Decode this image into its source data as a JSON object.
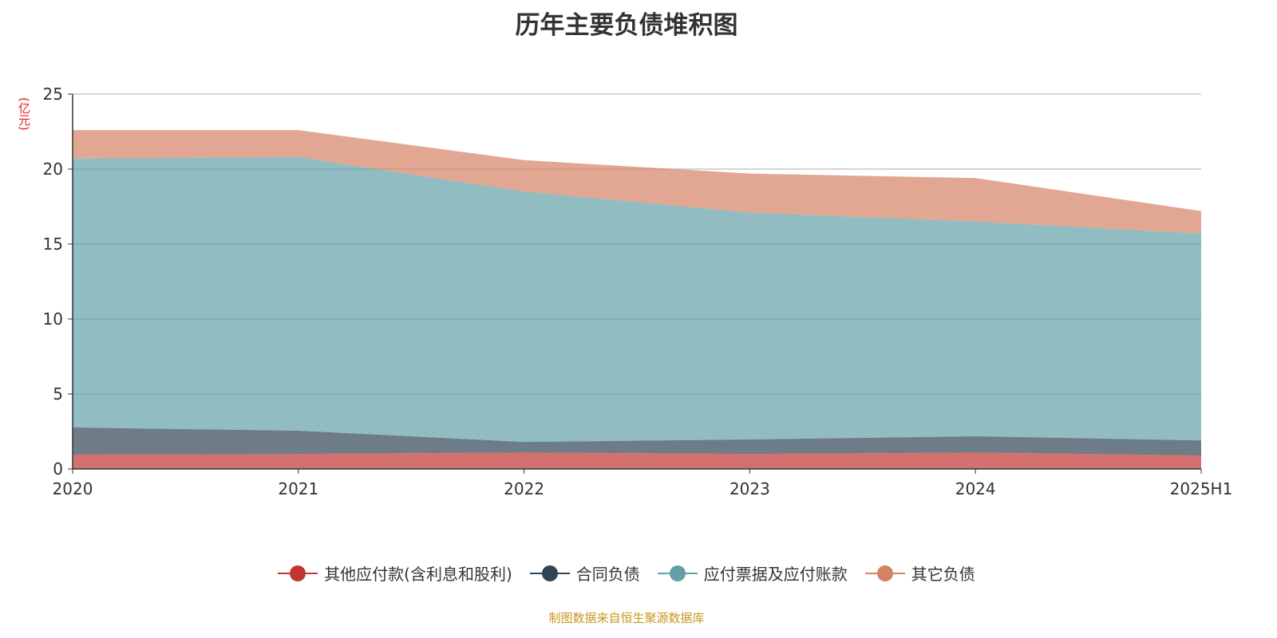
{
  "chart_data": {
    "type": "area",
    "stacked": true,
    "title": "历年主要负债堆积图",
    "ylabel": "(亿元)",
    "xlabel": "",
    "categories": [
      "2020",
      "2021",
      "2022",
      "2023",
      "2024",
      "2025H1"
    ],
    "ylim": [
      0,
      25
    ],
    "yticks": [
      0,
      5,
      10,
      15,
      20,
      25
    ],
    "grid": true,
    "legend_position": "bottom",
    "series": [
      {
        "name": "其他应付款(含利息和股利)",
        "color": "#c23531",
        "values": [
          0.96,
          1.0,
          1.1,
          1.0,
          1.1,
          0.9
        ]
      },
      {
        "name": "合同负债",
        "color": "#2f4554",
        "values": [
          1.81,
          1.55,
          0.7,
          0.97,
          1.08,
          1.0
        ]
      },
      {
        "name": "应付票据及应付账款",
        "color": "#61a0a8",
        "values": [
          17.93,
          18.25,
          16.7,
          15.13,
          14.32,
          13.8
        ]
      },
      {
        "name": "其它负债",
        "color": "#d48265",
        "values": [
          1.9,
          1.8,
          2.1,
          2.6,
          2.9,
          1.5
        ]
      }
    ]
  },
  "source": "制图数据来自恒生聚源数据库"
}
